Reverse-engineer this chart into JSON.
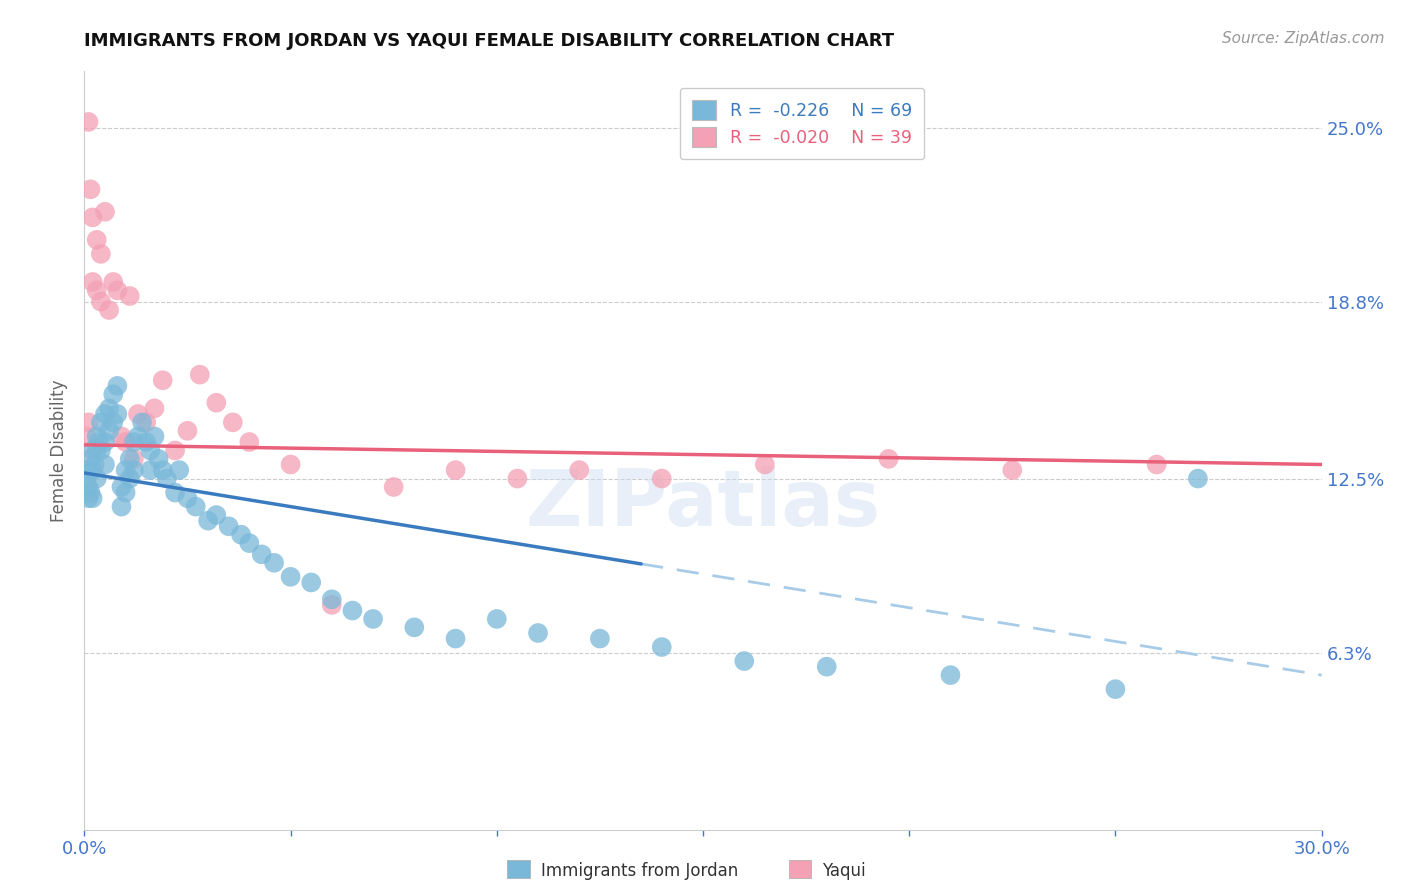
{
  "title": "IMMIGRANTS FROM JORDAN VS YAQUI FEMALE DISABILITY CORRELATION CHART",
  "source": "Source: ZipAtlas.com",
  "ylabel": "Female Disability",
  "xlim": [
    0.0,
    0.3
  ],
  "ylim": [
    0.0,
    0.27
  ],
  "ytick_positions": [
    0.063,
    0.125,
    0.188,
    0.25
  ],
  "ytick_labels": [
    "6.3%",
    "12.5%",
    "18.8%",
    "25.0%"
  ],
  "legend_r1": "R =  -0.226",
  "legend_n1": "N = 69",
  "legend_r2": "R =  -0.020",
  "legend_n2": "N = 39",
  "blue_color": "#7ab8d9",
  "pink_color": "#f4a0b5",
  "blue_line_color": "#3a7bbf",
  "pink_line_color": "#e8607a",
  "blue_dash_color": "#a8cce8",
  "axis_label_color": "#4477cc",
  "grid_color": "#cccccc",
  "background_color": "#ffffff",
  "jordan_x": [
    0.0005,
    0.001,
    0.001,
    0.001,
    0.0015,
    0.0015,
    0.002,
    0.002,
    0.002,
    0.0025,
    0.003,
    0.003,
    0.003,
    0.0035,
    0.004,
    0.004,
    0.005,
    0.005,
    0.005,
    0.006,
    0.006,
    0.007,
    0.007,
    0.008,
    0.008,
    0.009,
    0.009,
    0.01,
    0.01,
    0.011,
    0.011,
    0.012,
    0.012,
    0.013,
    0.014,
    0.015,
    0.016,
    0.016,
    0.017,
    0.018,
    0.019,
    0.02,
    0.022,
    0.023,
    0.025,
    0.027,
    0.03,
    0.032,
    0.035,
    0.038,
    0.04,
    0.043,
    0.046,
    0.05,
    0.055,
    0.06,
    0.065,
    0.07,
    0.08,
    0.09,
    0.1,
    0.11,
    0.125,
    0.14,
    0.16,
    0.18,
    0.21,
    0.25,
    0.27
  ],
  "jordan_y": [
    0.125,
    0.128,
    0.122,
    0.118,
    0.132,
    0.12,
    0.135,
    0.128,
    0.118,
    0.13,
    0.14,
    0.135,
    0.125,
    0.138,
    0.145,
    0.135,
    0.148,
    0.138,
    0.13,
    0.15,
    0.142,
    0.155,
    0.145,
    0.158,
    0.148,
    0.122,
    0.115,
    0.128,
    0.12,
    0.132,
    0.125,
    0.138,
    0.128,
    0.14,
    0.145,
    0.138,
    0.135,
    0.128,
    0.14,
    0.132,
    0.128,
    0.125,
    0.12,
    0.128,
    0.118,
    0.115,
    0.11,
    0.112,
    0.108,
    0.105,
    0.102,
    0.098,
    0.095,
    0.09,
    0.088,
    0.082,
    0.078,
    0.075,
    0.072,
    0.068,
    0.075,
    0.07,
    0.068,
    0.065,
    0.06,
    0.058,
    0.055,
    0.05,
    0.125
  ],
  "yaqui_x": [
    0.0005,
    0.001,
    0.001,
    0.0015,
    0.002,
    0.002,
    0.003,
    0.003,
    0.004,
    0.004,
    0.005,
    0.006,
    0.007,
    0.008,
    0.009,
    0.01,
    0.011,
    0.012,
    0.013,
    0.015,
    0.017,
    0.019,
    0.022,
    0.025,
    0.028,
    0.032,
    0.036,
    0.04,
    0.05,
    0.06,
    0.075,
    0.09,
    0.105,
    0.12,
    0.14,
    0.165,
    0.195,
    0.225,
    0.26
  ],
  "yaqui_y": [
    0.14,
    0.252,
    0.145,
    0.228,
    0.218,
    0.195,
    0.21,
    0.192,
    0.205,
    0.188,
    0.22,
    0.185,
    0.195,
    0.192,
    0.14,
    0.138,
    0.19,
    0.132,
    0.148,
    0.145,
    0.15,
    0.16,
    0.135,
    0.142,
    0.162,
    0.152,
    0.145,
    0.138,
    0.13,
    0.08,
    0.122,
    0.128,
    0.125,
    0.128,
    0.125,
    0.13,
    0.132,
    0.128,
    0.13
  ],
  "jordan_trend_x0": 0.0,
  "jordan_trend_x_solid_end": 0.135,
  "jordan_trend_x1": 0.3,
  "jordan_trend_y0": 0.127,
  "jordan_trend_y1": 0.055,
  "yaqui_trend_x0": 0.0,
  "yaqui_trend_x1": 0.3,
  "yaqui_trend_y0": 0.137,
  "yaqui_trend_y1": 0.13
}
